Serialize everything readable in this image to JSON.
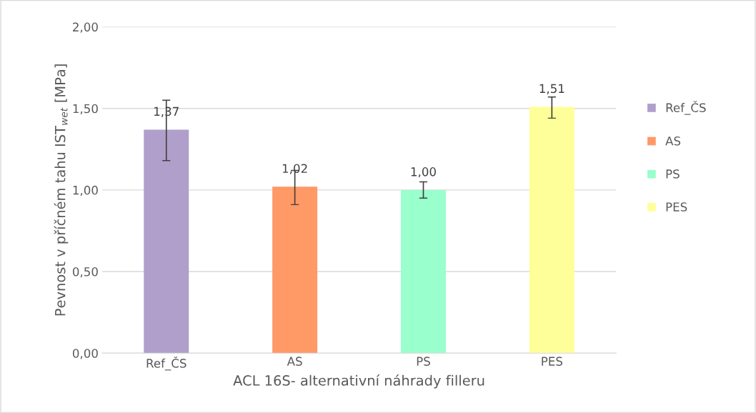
{
  "chart_data": {
    "type": "bar",
    "xlabel": "ACL 16S- alternativní náhrady filleru",
    "ylabel": "Pevnost v příčném tahu IST$_{wet}$ [MPa]",
    "categories": [
      "Ref_ČS",
      "AS",
      "PS",
      "PES"
    ],
    "series": [
      {
        "name": "Ref_ČS",
        "color": "#b09fca",
        "values": [
          1.37,
          null,
          null,
          null
        ],
        "errors": [
          [
            1.18,
            1.55
          ],
          null,
          null,
          null
        ],
        "value_labels": [
          "1,37",
          null,
          null,
          null
        ]
      },
      {
        "name": "AS",
        "color": "#ff9966",
        "values": [
          null,
          1.02,
          null,
          null
        ],
        "errors": [
          null,
          [
            0.91,
            1.12
          ],
          null,
          null
        ],
        "value_labels": [
          null,
          "1,02",
          null,
          null
        ]
      },
      {
        "name": "PS",
        "color": "#99ffcc",
        "values": [
          null,
          null,
          1.0,
          null
        ],
        "errors": [
          null,
          null,
          [
            0.95,
            1.05
          ],
          null
        ],
        "value_labels": [
          null,
          null,
          "1,00",
          null
        ]
      },
      {
        "name": "PES",
        "color": "#ffff99",
        "values": [
          null,
          null,
          null,
          1.51
        ],
        "errors": [
          null,
          null,
          null,
          [
            1.44,
            1.57
          ]
        ],
        "value_labels": [
          null,
          null,
          null,
          "1,51"
        ]
      }
    ],
    "ylim": [
      0,
      2
    ],
    "yticks": [
      {
        "value": 0,
        "label": "0,00"
      },
      {
        "value": 0.5,
        "label": "0,50"
      },
      {
        "value": 1,
        "label": "1,00"
      },
      {
        "value": 1.5,
        "label": "1,50"
      },
      {
        "value": 2,
        "label": "2,00"
      }
    ],
    "grid": "y",
    "legend": "right"
  }
}
